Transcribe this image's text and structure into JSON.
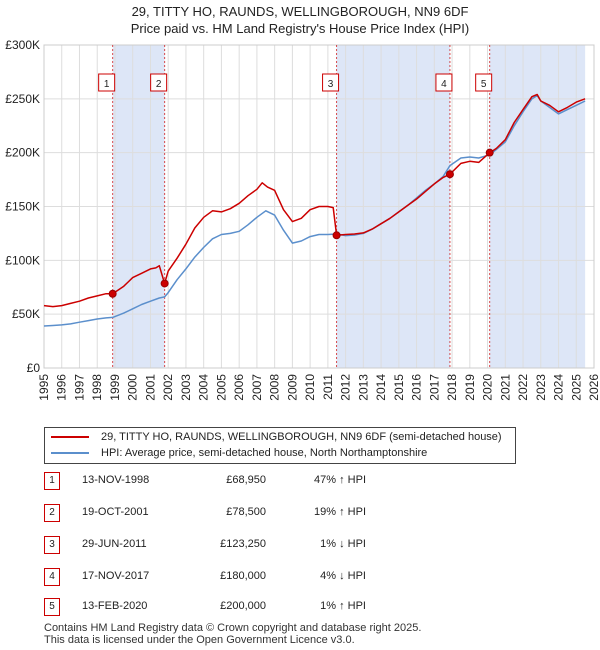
{
  "title": {
    "line1": "29, TITTY HO, RAUNDS, WELLINGBOROUGH, NN9 6DF",
    "line2": "Price paid vs. HM Land Registry's House Price Index (HPI)"
  },
  "colors": {
    "property": "#cc0000",
    "hpi": "#5b8fcc",
    "shade": "#dde6f7",
    "grid": "#dddddd"
  },
  "chart_data": {
    "type": "line",
    "xlim": [
      1995,
      2026
    ],
    "ylim": [
      0,
      300000
    ],
    "yticks": [
      0,
      50000,
      100000,
      150000,
      200000,
      250000,
      300000
    ],
    "ytick_labels": [
      "£0",
      "£50K",
      "£100K",
      "£150K",
      "£200K",
      "£250K",
      "£300K"
    ],
    "xticks": [
      1995,
      1996,
      1997,
      1998,
      1999,
      2000,
      2001,
      2002,
      2003,
      2004,
      2005,
      2006,
      2007,
      2008,
      2009,
      2010,
      2011,
      2012,
      2013,
      2014,
      2015,
      2016,
      2017,
      2018,
      2019,
      2020,
      2021,
      2022,
      2023,
      2024,
      2025,
      2026
    ],
    "xtick_labels": [
      "1995",
      "1996",
      "1997",
      "1998",
      "1999",
      "2000",
      "2001",
      "2002",
      "2003",
      "2004",
      "2005",
      "2006",
      "2007",
      "2008",
      "2009",
      "2010",
      "2011",
      "2012",
      "2013",
      "2014",
      "2015",
      "2016",
      "2017",
      "2018",
      "2019",
      "2020",
      "2021",
      "2022",
      "2023",
      "2024",
      "2025",
      "2026"
    ],
    "shaded_ranges": [
      [
        1998.87,
        2001.8
      ],
      [
        2011.49,
        2017.88
      ],
      [
        2020.12,
        2025.5
      ]
    ],
    "series": [
      {
        "name": "29, TITTY HO, RAUNDS, WELLINGBOROUGH, NN9 6DF (semi-detached house)",
        "x": [
          1995,
          1995.5,
          1996,
          1996.5,
          1997,
          1997.5,
          1998,
          1998.5,
          1998.87,
          1999.5,
          2000,
          2000.5,
          2001,
          2001.3,
          2001.5,
          2001.8,
          2002,
          2002.5,
          2003,
          2003.5,
          2004,
          2004.5,
          2005,
          2005.5,
          2006,
          2006.5,
          2007,
          2007.3,
          2007.6,
          2008,
          2008.5,
          2009,
          2009.5,
          2010,
          2010.5,
          2011,
          2011.3,
          2011.49,
          2012,
          2012.5,
          2013,
          2013.5,
          2014,
          2014.5,
          2015,
          2015.5,
          2016,
          2016.5,
          2017,
          2017.5,
          2017.88,
          2018.5,
          2019,
          2019.5,
          2020.12,
          2020.5,
          2021,
          2021.5,
          2022,
          2022.5,
          2022.8,
          2023,
          2023.5,
          2024,
          2024.5,
          2025,
          2025.5
        ],
        "y": [
          58000,
          57000,
          58000,
          60000,
          62000,
          65000,
          67000,
          69000,
          68950,
          76000,
          84000,
          88000,
          92000,
          93000,
          95000,
          78500,
          90000,
          102000,
          115000,
          130000,
          140000,
          146000,
          145000,
          148000,
          153000,
          160000,
          166000,
          172000,
          168000,
          165000,
          147000,
          136000,
          139000,
          147000,
          150000,
          150000,
          149000,
          123250,
          124000,
          124500,
          125500,
          129000,
          134000,
          139000,
          145000,
          151000,
          157000,
          164000,
          171000,
          177000,
          180000,
          190000,
          192000,
          191000,
          200000,
          204000,
          212000,
          228000,
          240000,
          252000,
          254000,
          248000,
          244000,
          238000,
          242000,
          247000,
          250000
        ]
      },
      {
        "name": "HPI: Average price, semi-detached house, North Northamptonshire",
        "x": [
          1995,
          1995.5,
          1996,
          1996.5,
          1997,
          1997.5,
          1998,
          1998.5,
          1998.87,
          1999.5,
          2000,
          2000.5,
          2001,
          2001.5,
          2001.8,
          2002,
          2002.5,
          2003,
          2003.5,
          2004,
          2004.5,
          2005,
          2005.5,
          2006,
          2006.5,
          2007,
          2007.5,
          2008,
          2008.5,
          2009,
          2009.5,
          2010,
          2010.5,
          2011,
          2011.49,
          2012,
          2012.5,
          2013,
          2013.5,
          2014,
          2014.5,
          2015,
          2015.5,
          2016,
          2016.5,
          2017,
          2017.5,
          2017.88,
          2018.5,
          2019,
          2019.5,
          2020.12,
          2020.5,
          2021,
          2021.5,
          2022,
          2022.5,
          2022.8,
          2023,
          2023.5,
          2024,
          2024.5,
          2025,
          2025.5
        ],
        "y": [
          39000,
          39500,
          40000,
          41000,
          42500,
          44000,
          45500,
          46500,
          47000,
          51000,
          55000,
          59000,
          62000,
          65000,
          66000,
          70000,
          82000,
          92000,
          103000,
          112000,
          120000,
          124000,
          125000,
          127000,
          133000,
          140000,
          146000,
          142000,
          128000,
          116000,
          118000,
          122000,
          124000,
          124000,
          124500,
          123000,
          123500,
          125000,
          129000,
          134000,
          139000,
          145000,
          151000,
          158000,
          165000,
          171000,
          178000,
          188000,
          195000,
          196000,
          195000,
          198000,
          203000,
          210000,
          225000,
          238000,
          250000,
          253000,
          248000,
          242000,
          236000,
          240000,
          244000,
          248000
        ]
      }
    ],
    "sale_markers": [
      {
        "label": "1",
        "x": 1998.87,
        "y": 68950
      },
      {
        "label": "2",
        "x": 2001.8,
        "y": 78500
      },
      {
        "label": "3",
        "x": 2011.49,
        "y": 123250
      },
      {
        "label": "4",
        "x": 2017.88,
        "y": 180000
      },
      {
        "label": "5",
        "x": 2020.12,
        "y": 200000
      }
    ]
  },
  "legend": {
    "property_label": "29, TITTY HO, RAUNDS, WELLINGBOROUGH, NN9 6DF (semi-detached house)",
    "hpi_label": "HPI: Average price, semi-detached house, North Northamptonshire"
  },
  "sales": [
    {
      "num": "1",
      "date": "13-NOV-1998",
      "price": "£68,950",
      "pct": "47% ↑ HPI"
    },
    {
      "num": "2",
      "date": "19-OCT-2001",
      "price": "£78,500",
      "pct": "19% ↑ HPI"
    },
    {
      "num": "3",
      "date": "29-JUN-2011",
      "price": "£123,250",
      "pct": "1% ↓ HPI"
    },
    {
      "num": "4",
      "date": "17-NOV-2017",
      "price": "£180,000",
      "pct": "4% ↓ HPI"
    },
    {
      "num": "5",
      "date": "13-FEB-2020",
      "price": "£200,000",
      "pct": "1% ↑ HPI"
    }
  ],
  "footer": {
    "line1": "Contains HM Land Registry data © Crown copyright and database right 2025.",
    "line2": "This data is licensed under the Open Government Licence v3.0."
  }
}
